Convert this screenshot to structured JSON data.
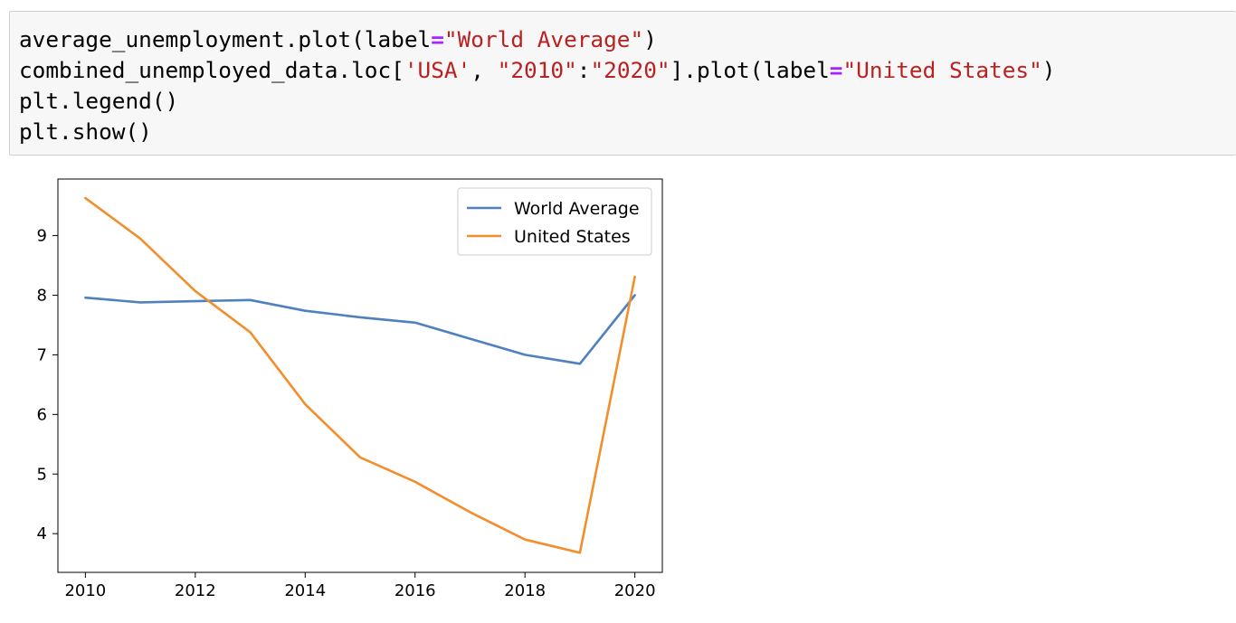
{
  "code_cell": {
    "lines": [
      [
        {
          "t": "average_unemployment.plot(label",
          "c": "plain"
        },
        {
          "t": "=",
          "c": "op"
        },
        {
          "t": "\"World Average\"",
          "c": "str"
        },
        {
          "t": ")",
          "c": "plain"
        }
      ],
      [
        {
          "t": "combined_unemployed_data.loc[",
          "c": "plain"
        },
        {
          "t": "'USA'",
          "c": "str"
        },
        {
          "t": ", ",
          "c": "plain"
        },
        {
          "t": "\"2010\"",
          "c": "str"
        },
        {
          "t": ":",
          "c": "plain"
        },
        {
          "t": "\"2020\"",
          "c": "str"
        },
        {
          "t": "].plot(label",
          "c": "plain"
        },
        {
          "t": "=",
          "c": "op"
        },
        {
          "t": "\"United States\"",
          "c": "str"
        },
        {
          "t": ")",
          "c": "plain"
        }
      ],
      [
        {
          "t": "plt.legend()",
          "c": "plain"
        }
      ],
      [
        {
          "t": "plt.show()",
          "c": "plain"
        }
      ]
    ]
  },
  "chart_data": {
    "type": "line",
    "title": "",
    "xlabel": "",
    "ylabel": "",
    "xlim": [
      2009.5,
      2020.5
    ],
    "ylim": [
      3.35,
      9.95
    ],
    "xticks": [
      2010,
      2012,
      2014,
      2016,
      2018,
      2020
    ],
    "yticks": [
      4,
      5,
      6,
      7,
      8,
      9
    ],
    "x": [
      2010,
      2011,
      2012,
      2013,
      2014,
      2015,
      2016,
      2017,
      2018,
      2019,
      2020
    ],
    "series": [
      {
        "name": "World Average",
        "color": "#4e81bd",
        "values": [
          7.96,
          7.88,
          7.9,
          7.92,
          7.74,
          7.63,
          7.54,
          7.27,
          7.0,
          6.85,
          8.0
        ]
      },
      {
        "name": "United States",
        "color": "#f28e2b",
        "values": [
          9.63,
          8.95,
          8.07,
          7.38,
          6.17,
          5.28,
          4.87,
          4.36,
          3.9,
          3.68,
          8.31
        ]
      }
    ],
    "legend_position": "top-right",
    "grid": false
  }
}
